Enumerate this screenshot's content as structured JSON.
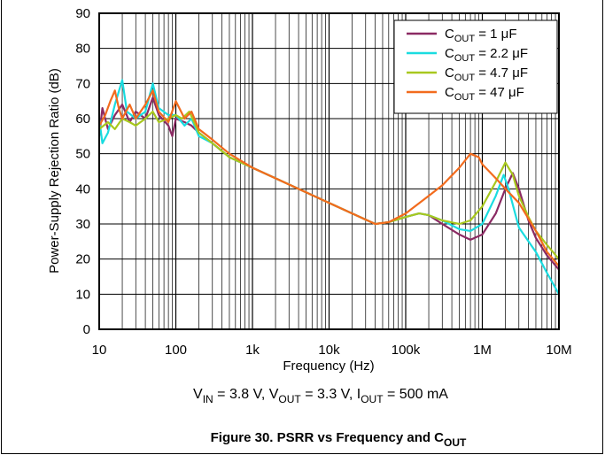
{
  "chart_data": {
    "type": "line",
    "title": "",
    "xlabel": "Frequency (Hz)",
    "ylabel": "Power-Supply Rejection Ratio (dB)",
    "xscale": "log",
    "xlim": [
      10,
      10000000
    ],
    "ylim": [
      0,
      90
    ],
    "grid": true,
    "legend_position": "top-right",
    "x_ticks": [
      {
        "value": 10,
        "label": "10"
      },
      {
        "value": 100,
        "label": "100"
      },
      {
        "value": 1000,
        "label": "1k"
      },
      {
        "value": 10000,
        "label": "10k"
      },
      {
        "value": 100000,
        "label": "100k"
      },
      {
        "value": 1000000,
        "label": "1M"
      },
      {
        "value": 10000000,
        "label": "10M"
      }
    ],
    "y_ticks": [
      0,
      10,
      20,
      30,
      40,
      50,
      60,
      70,
      80,
      90
    ],
    "series": [
      {
        "name": "COUT = 1 µF",
        "cap_value": "1 μF",
        "color": "#8B2A63",
        "points": [
          [
            10,
            55
          ],
          [
            11,
            63
          ],
          [
            13,
            57
          ],
          [
            16,
            61
          ],
          [
            20,
            64
          ],
          [
            25,
            59
          ],
          [
            30,
            62
          ],
          [
            40,
            60
          ],
          [
            50,
            66
          ],
          [
            60,
            61
          ],
          [
            80,
            58
          ],
          [
            90,
            55
          ],
          [
            100,
            60
          ],
          [
            130,
            59
          ],
          [
            160,
            58
          ],
          [
            200,
            56
          ],
          [
            300,
            53
          ],
          [
            500,
            49
          ],
          [
            1000,
            46
          ],
          [
            2000,
            43
          ],
          [
            5000,
            39
          ],
          [
            10000,
            36
          ],
          [
            20000,
            33
          ],
          [
            40000,
            30
          ],
          [
            60000,
            30.5
          ],
          [
            100000,
            32
          ],
          [
            150000,
            33
          ],
          [
            200000,
            32.5
          ],
          [
            300000,
            30
          ],
          [
            500000,
            27
          ],
          [
            700000,
            25.5
          ],
          [
            1000000,
            27
          ],
          [
            1500000,
            33
          ],
          [
            2000000,
            40
          ],
          [
            2500000,
            44.5
          ],
          [
            3000000,
            40
          ],
          [
            4000000,
            31
          ],
          [
            5000000,
            26
          ],
          [
            7000000,
            21
          ],
          [
            10000000,
            17
          ]
        ]
      },
      {
        "name": "COUT = 2.2 µF",
        "cap_value": "2.2 μF",
        "color": "#1ADCE0",
        "points": [
          [
            10,
            60
          ],
          [
            11,
            53
          ],
          [
            13,
            56
          ],
          [
            16,
            64
          ],
          [
            20,
            71
          ],
          [
            23,
            62
          ],
          [
            30,
            60
          ],
          [
            40,
            62
          ],
          [
            50,
            70
          ],
          [
            60,
            63
          ],
          [
            80,
            61
          ],
          [
            100,
            61
          ],
          [
            130,
            58
          ],
          [
            160,
            60
          ],
          [
            200,
            55
          ],
          [
            300,
            53
          ],
          [
            500,
            49
          ],
          [
            1000,
            46
          ],
          [
            2000,
            43
          ],
          [
            5000,
            39
          ],
          [
            10000,
            36
          ],
          [
            20000,
            33
          ],
          [
            40000,
            30
          ],
          [
            60000,
            30.5
          ],
          [
            100000,
            32
          ],
          [
            150000,
            33
          ],
          [
            200000,
            32.5
          ],
          [
            300000,
            31
          ],
          [
            500000,
            28.5
          ],
          [
            700000,
            28
          ],
          [
            1000000,
            30
          ],
          [
            1500000,
            38
          ],
          [
            1900000,
            44
          ],
          [
            2200000,
            40
          ],
          [
            3000000,
            29
          ],
          [
            5000000,
            22
          ],
          [
            7000000,
            16
          ],
          [
            10000000,
            10
          ]
        ]
      },
      {
        "name": "COUT = 4.7 µF",
        "cap_value": "4.7 μF",
        "color": "#A8C81E",
        "points": [
          [
            10,
            57
          ],
          [
            13,
            59
          ],
          [
            16,
            57
          ],
          [
            20,
            60
          ],
          [
            25,
            59
          ],
          [
            30,
            58
          ],
          [
            40,
            60
          ],
          [
            50,
            62
          ],
          [
            60,
            59
          ],
          [
            80,
            60
          ],
          [
            100,
            61
          ],
          [
            120,
            60
          ],
          [
            150,
            62
          ],
          [
            200,
            56
          ],
          [
            300,
            53
          ],
          [
            500,
            49
          ],
          [
            1000,
            46
          ],
          [
            2000,
            43
          ],
          [
            5000,
            39
          ],
          [
            10000,
            36
          ],
          [
            20000,
            33
          ],
          [
            40000,
            30
          ],
          [
            60000,
            30.5
          ],
          [
            100000,
            32
          ],
          [
            150000,
            33
          ],
          [
            200000,
            32.5
          ],
          [
            300000,
            31
          ],
          [
            500000,
            30
          ],
          [
            700000,
            31
          ],
          [
            1000000,
            35
          ],
          [
            1500000,
            42
          ],
          [
            2000000,
            47.5
          ],
          [
            2500000,
            44
          ],
          [
            3000000,
            38
          ],
          [
            4000000,
            32
          ],
          [
            5000000,
            28
          ],
          [
            7000000,
            24
          ],
          [
            10000000,
            20
          ]
        ]
      },
      {
        "name": "COUT = 47 µF",
        "cap_value": "47 μF",
        "color": "#F26B1D",
        "points": [
          [
            10,
            58
          ],
          [
            12,
            61
          ],
          [
            14,
            65
          ],
          [
            16,
            68
          ],
          [
            18,
            63
          ],
          [
            20,
            60
          ],
          [
            25,
            64
          ],
          [
            30,
            60
          ],
          [
            40,
            64
          ],
          [
            50,
            68
          ],
          [
            60,
            62
          ],
          [
            80,
            59
          ],
          [
            100,
            65
          ],
          [
            130,
            60
          ],
          [
            160,
            62
          ],
          [
            200,
            57
          ],
          [
            300,
            54
          ],
          [
            500,
            50
          ],
          [
            1000,
            46
          ],
          [
            2000,
            43
          ],
          [
            5000,
            39
          ],
          [
            10000,
            36
          ],
          [
            20000,
            33
          ],
          [
            40000,
            30
          ],
          [
            60000,
            30.5
          ],
          [
            100000,
            33
          ],
          [
            200000,
            38
          ],
          [
            300000,
            41
          ],
          [
            500000,
            46
          ],
          [
            700000,
            50
          ],
          [
            900000,
            49
          ],
          [
            1000000,
            47
          ],
          [
            1500000,
            43
          ],
          [
            2000000,
            40
          ],
          [
            3000000,
            36
          ],
          [
            5000000,
            28
          ],
          [
            7000000,
            22
          ],
          [
            10000000,
            18
          ]
        ]
      }
    ]
  },
  "legend": {
    "prefix": "C",
    "subscript": "OUT",
    "equals": " = "
  },
  "conditions": {
    "vin_label": "V",
    "vin_sub": "IN",
    "vin_val": " = 3.8 V, ",
    "vout_label": "V",
    "vout_sub": "OUT",
    "vout_val": " = 3.3 V, ",
    "iout_label": "I",
    "iout_sub": "OUT",
    "iout_val": " = 500 mA"
  },
  "caption": {
    "main": "Figure 30. PSRR vs Frequency and C",
    "sub": "OUT"
  }
}
